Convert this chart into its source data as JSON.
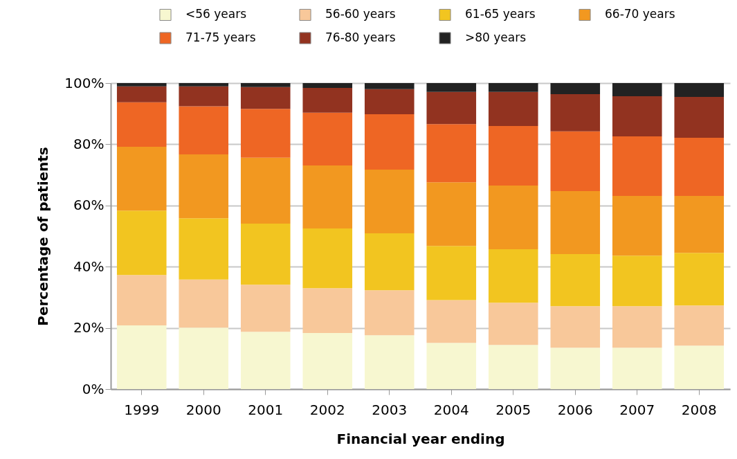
{
  "chart_data": {
    "type": "bar",
    "stacked": true,
    "xlabel": "Financial year ending",
    "ylabel": "Percentage of patients",
    "categories": [
      "1999",
      "2000",
      "2001",
      "2002",
      "2003",
      "2004",
      "2005",
      "2006",
      "2007",
      "2008"
    ],
    "series": [
      {
        "name": "<56 years",
        "color": "#f7f7d0",
        "values": [
          20.8,
          20.1,
          18.7,
          18.3,
          17.6,
          15.1,
          14.4,
          13.5,
          13.5,
          14.2
        ]
      },
      {
        "name": "56-60 years",
        "color": "#f8c89a",
        "values": [
          16.5,
          15.7,
          15.4,
          14.7,
          14.7,
          14.0,
          13.8,
          13.6,
          13.6,
          13.1
        ]
      },
      {
        "name": "61-65 years",
        "color": "#f2c520",
        "values": [
          21.0,
          20.0,
          20.0,
          19.5,
          18.6,
          17.7,
          17.5,
          17.0,
          16.5,
          17.2
        ]
      },
      {
        "name": "66-70 years",
        "color": "#f29820",
        "values": [
          20.9,
          20.9,
          21.5,
          20.6,
          20.8,
          20.8,
          20.8,
          20.6,
          19.5,
          18.6
        ]
      },
      {
        "name": "71-75 years",
        "color": "#ee6624",
        "values": [
          14.5,
          15.7,
          16.0,
          17.2,
          18.1,
          19.0,
          19.5,
          19.5,
          19.5,
          19.0
        ]
      },
      {
        "name": "76-80 years",
        "color": "#923320",
        "values": [
          5.2,
          6.5,
          7.1,
          8.1,
          8.2,
          10.5,
          11.1,
          12.2,
          13.1,
          13.4
        ]
      },
      {
        "name": ">80 years",
        "color": "#222222",
        "values": [
          1.1,
          1.1,
          1.3,
          1.6,
          2.0,
          2.9,
          2.9,
          3.6,
          4.3,
          4.5
        ]
      }
    ],
    "ylim": [
      0,
      100
    ],
    "yticks": [
      {
        "value": 0,
        "label": "0%"
      },
      {
        "value": 20,
        "label": "20%"
      },
      {
        "value": 40,
        "label": "40%"
      },
      {
        "value": 60,
        "label": "60%"
      },
      {
        "value": 80,
        "label": "80%"
      },
      {
        "value": 100,
        "label": "100%"
      }
    ],
    "grid": "y",
    "legend": "top"
  }
}
